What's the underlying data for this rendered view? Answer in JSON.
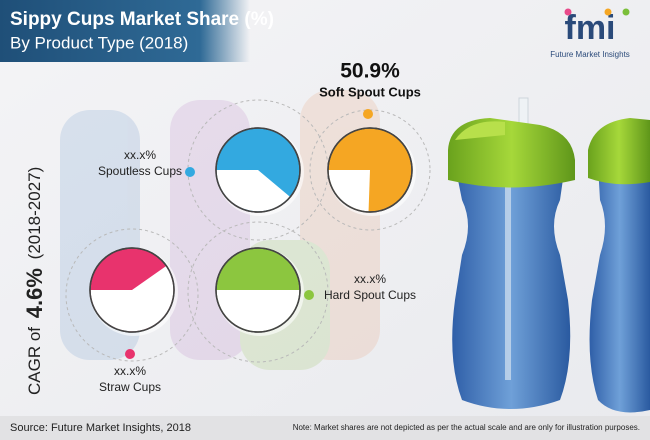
{
  "header": {
    "title": "Sippy Cups Market Share (%)",
    "subtitle": "By Product Type (2018)"
  },
  "logo": {
    "brand": "fmi",
    "tagline": "Future Market Insights"
  },
  "cagr": {
    "prefix": "CAGR of",
    "value": "4.6%",
    "period": "(2018-2027)"
  },
  "segments": [
    {
      "name": "Soft Spout Cups",
      "share": "50.9%"
    },
    {
      "name": "Spoutless Cups",
      "share": "xx.x%"
    },
    {
      "name": "Hard Spout Cups",
      "share": "xx.x%"
    },
    {
      "name": "Straw Cups",
      "share": "xx.x%"
    }
  ],
  "footer": {
    "source": "Source: Future Market Insights, 2018",
    "note": "Note: Market shares are not depicted as per the actual scale and are only for illustration purposes."
  }
}
